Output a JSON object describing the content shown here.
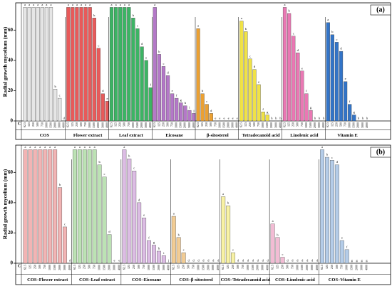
{
  "chart_data": [
    {
      "type": "bar",
      "panel_label": "(a)",
      "y_label": "Radial growth mycelium (mm)",
      "control_label": "C",
      "ylim": [
        0,
        78
      ],
      "yticks": [
        0,
        20,
        40,
        60
      ],
      "concentrations": [
        "62.5",
        "125",
        "250",
        "500",
        "750",
        "1000",
        "1500",
        "2000",
        "3000",
        "4000"
      ],
      "groups": [
        {
          "name": "COS",
          "color": "#e6e6e6",
          "values": [
            75,
            75,
            75,
            75,
            75,
            75,
            75,
            21,
            15,
            0
          ],
          "letters": [
            "a",
            "a",
            "a",
            "a",
            "a",
            "a",
            "a",
            "b",
            "c",
            "d"
          ]
        },
        {
          "name": "Flower extract",
          "color": "#e85a5a",
          "values": [
            75,
            75,
            75,
            75,
            75,
            75,
            68,
            48,
            18,
            13
          ],
          "letters": [
            "a",
            "a",
            "a",
            "a",
            "a",
            "a",
            "b",
            "c",
            "d",
            "e"
          ]
        },
        {
          "name": "Leaf extract",
          "color": "#3cb464",
          "values": [
            75,
            75,
            75,
            75,
            75,
            68,
            61,
            49,
            40,
            22
          ],
          "letters": [
            "a",
            "a",
            "a",
            "a",
            "a",
            "b",
            "c",
            "d",
            "e",
            "f"
          ]
        },
        {
          "name": "Eicosane",
          "color": "#b478c8",
          "values": [
            75,
            44,
            36,
            30,
            18,
            15,
            12,
            10,
            7,
            5
          ],
          "letters": [
            "a",
            "b",
            "c",
            "d",
            "e",
            "f",
            "g",
            "h",
            "i",
            "j"
          ]
        },
        {
          "name": "β-sitosterol",
          "color": "#eba032",
          "values": [
            61,
            18,
            11,
            5,
            0,
            0,
            0,
            0,
            0,
            0
          ],
          "letters": [
            "a",
            "b",
            "c",
            "d",
            "e",
            "e",
            "e",
            "e",
            "e",
            "e"
          ]
        },
        {
          "name": "Tetradecanoid acid",
          "color": "#f0e246",
          "values": [
            66,
            59,
            41,
            34,
            24,
            6,
            4,
            0,
            0,
            0
          ],
          "letters": [
            "a",
            "b",
            "c",
            "d",
            "e",
            "f",
            "g",
            "h",
            "h",
            "h"
          ]
        },
        {
          "name": "Linolenic acid",
          "color": "#ea78b4",
          "values": [
            75,
            71,
            56,
            45,
            33,
            18,
            7,
            0,
            0,
            0
          ],
          "letters": [
            "a",
            "b",
            "c",
            "d",
            "e",
            "f",
            "g",
            "h",
            "h",
            "h"
          ]
        },
        {
          "name": "Vitamin E",
          "color": "#3274c8",
          "values": [
            65,
            57,
            52,
            46,
            26,
            11,
            4,
            0,
            0,
            0
          ],
          "letters": [
            "a",
            "b",
            "c",
            "d",
            "e",
            "f",
            "g",
            "h",
            "h",
            "h"
          ]
        }
      ]
    },
    {
      "type": "bar",
      "panel_label": "(b)",
      "y_label": "Radial growth mycelium (mm)",
      "control_label": "C",
      "ylim": [
        0,
        78
      ],
      "yticks": [
        0,
        20,
        40,
        60
      ],
      "concentrations": [
        "62.5",
        "125",
        "250",
        "500",
        "750",
        "1000",
        "1500",
        "2000",
        "3000",
        "4000"
      ],
      "groups": [
        {
          "name": "COS–Flower extract",
          "color": "#f2b4b4",
          "values": [
            75,
            75,
            75,
            75,
            75,
            75,
            75,
            50,
            24,
            0
          ],
          "letters": [
            "a",
            "a",
            "a",
            "a",
            "a",
            "a",
            "a",
            "b",
            "c",
            "d"
          ]
        },
        {
          "name": "COS–Leaf extract",
          "color": "#bce2b4",
          "values": [
            75,
            75,
            75,
            75,
            75,
            65,
            57,
            19,
            0,
            0
          ],
          "letters": [
            "a",
            "a",
            "a",
            "a",
            "a",
            "b",
            "c",
            "d",
            "e",
            "e"
          ]
        },
        {
          "name": "COS–Eicosane",
          "color": "#dcbce4",
          "values": [
            75,
            69,
            61,
            40,
            30,
            15,
            12,
            8,
            5,
            0
          ],
          "letters": [
            "a",
            "b",
            "c",
            "d",
            "e",
            "f",
            "g",
            "h",
            "i",
            "j"
          ]
        },
        {
          "name": "COS–β-sitosterol",
          "color": "#f2cc94",
          "values": [
            31,
            17,
            7,
            0,
            0,
            0,
            0,
            0,
            0,
            0
          ],
          "letters": [
            "a",
            "b",
            "c",
            "d",
            "d",
            "d",
            "d",
            "d",
            "d",
            "d"
          ]
        },
        {
          "name": "COS–Tetradecanoid acid",
          "color": "#f8f2a4",
          "values": [
            44,
            38,
            7,
            0,
            0,
            0,
            0,
            0,
            0,
            0
          ],
          "letters": [
            "a",
            "b",
            "c",
            "d",
            "d",
            "d",
            "d",
            "d",
            "d",
            "d"
          ]
        },
        {
          "name": "COS–Linolenic acid",
          "color": "#f2bcd4",
          "values": [
            26,
            17,
            4,
            0,
            0,
            0,
            0,
            0,
            0,
            0
          ],
          "letters": [
            "a",
            "b",
            "c",
            "d",
            "d",
            "d",
            "d",
            "d",
            "d",
            "d"
          ]
        },
        {
          "name": "COS–Vitamin E",
          "color": "#b4cce8",
          "values": [
            75,
            70,
            68,
            65,
            15,
            9,
            0,
            0,
            0,
            0
          ],
          "letters": [
            "a",
            "b",
            "c",
            "d",
            "e",
            "f",
            "g",
            "g",
            "g",
            "g"
          ]
        }
      ]
    }
  ]
}
